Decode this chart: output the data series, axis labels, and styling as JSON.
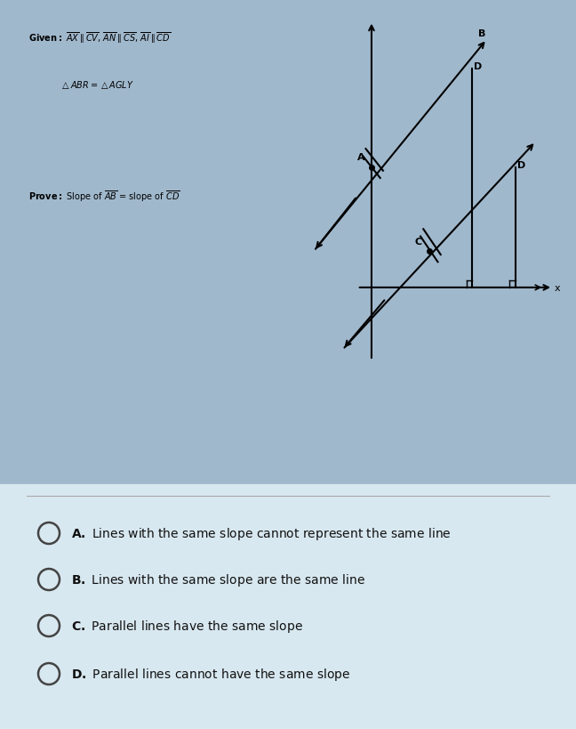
{
  "bg_color": "#85c8e8",
  "outer_bg": "#a0b8cc",
  "table_header_color": "#3a3a8a",
  "row_shaded": "#7ab8d8",
  "row_unshaded": "#a8d8f0",
  "mcq_bg": "#d8e8f0",
  "circle_color": "#555555",
  "text_color": "#111111",
  "choices": [
    {
      "label": "A.",
      "text": "Lines with the same slope cannot represent the same line"
    },
    {
      "label": "B.",
      "text": "Lines with the same slope are the same line"
    },
    {
      "label": "C.",
      "text": "Parallel lines have the same slope"
    },
    {
      "label": "D.",
      "text": "Parallel lines cannot have the same slope"
    }
  ]
}
